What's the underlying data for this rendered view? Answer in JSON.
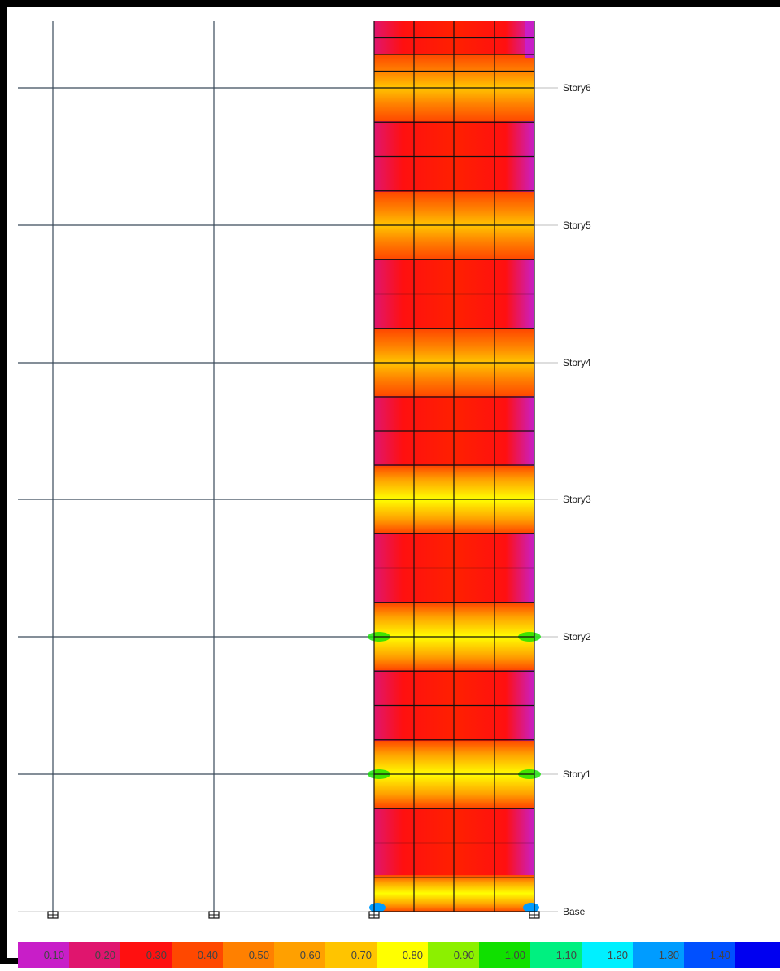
{
  "view": {
    "story_levels": [
      "Story6",
      "Story5",
      "Story4",
      "Story3",
      "Story2",
      "Story1",
      "Base"
    ]
  },
  "legend": {
    "items": [
      {
        "label": "0.10",
        "color": "#c81ec8"
      },
      {
        "label": "0.20",
        "color": "#e0156e"
      },
      {
        "label": "0.30",
        "color": "#ff1010"
      },
      {
        "label": "0.40",
        "color": "#ff4800"
      },
      {
        "label": "0.50",
        "color": "#ff8000"
      },
      {
        "label": "0.60",
        "color": "#ffa000"
      },
      {
        "label": "0.70",
        "color": "#ffc400"
      },
      {
        "label": "0.80",
        "color": "#ffff00"
      },
      {
        "label": "0.90",
        "color": "#8cf000"
      },
      {
        "label": "1.00",
        "color": "#10e000"
      },
      {
        "label": "1.10",
        "color": "#00f080"
      },
      {
        "label": "1.20",
        "color": "#00f0ff"
      },
      {
        "label": "1.30",
        "color": "#009cff"
      },
      {
        "label": "1.40",
        "color": "#0050ff"
      },
      {
        "label": "",
        "color": "#0000f0"
      }
    ]
  }
}
